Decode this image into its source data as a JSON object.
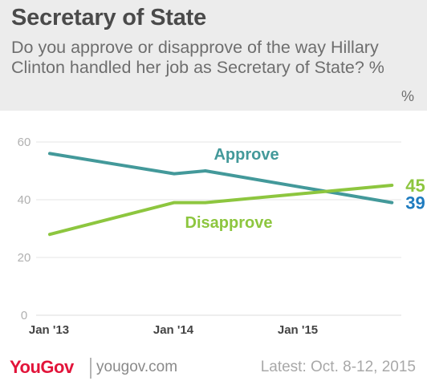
{
  "header": {
    "title": "Secretary of State",
    "subtitle": "Do you approve or disapprove of the way Hillary Clinton handled her job as Secretary of State? %",
    "unit_label": "%"
  },
  "footer": {
    "brand": "YouGov",
    "site": "yougov.com",
    "latest": "Latest: Oct. 8-12, 2015"
  },
  "chart_data": {
    "type": "line",
    "title": "Secretary of State",
    "ylim": [
      0,
      60
    ],
    "yticks": [
      0,
      20,
      40,
      60
    ],
    "xticks": [
      "Jan '13",
      "Jan '14",
      "Jan '15"
    ],
    "grid": true,
    "series": [
      {
        "name": "Approve",
        "color": "#43999a",
        "end_label": "39",
        "end_label_color": "#1e7bbf",
        "points": [
          {
            "x": "2013-01",
            "y": 56
          },
          {
            "x": "2014-01",
            "y": 49
          },
          {
            "x": "2014-04",
            "y": 50
          },
          {
            "x": "2015-10",
            "y": 39
          }
        ]
      },
      {
        "name": "Disapprove",
        "color": "#8dc63f",
        "end_label": "45",
        "end_label_color": "#8dc63f",
        "points": [
          {
            "x": "2013-01",
            "y": 28
          },
          {
            "x": "2014-01",
            "y": 39
          },
          {
            "x": "2014-04",
            "y": 39
          },
          {
            "x": "2015-10",
            "y": 45
          }
        ]
      }
    ]
  }
}
